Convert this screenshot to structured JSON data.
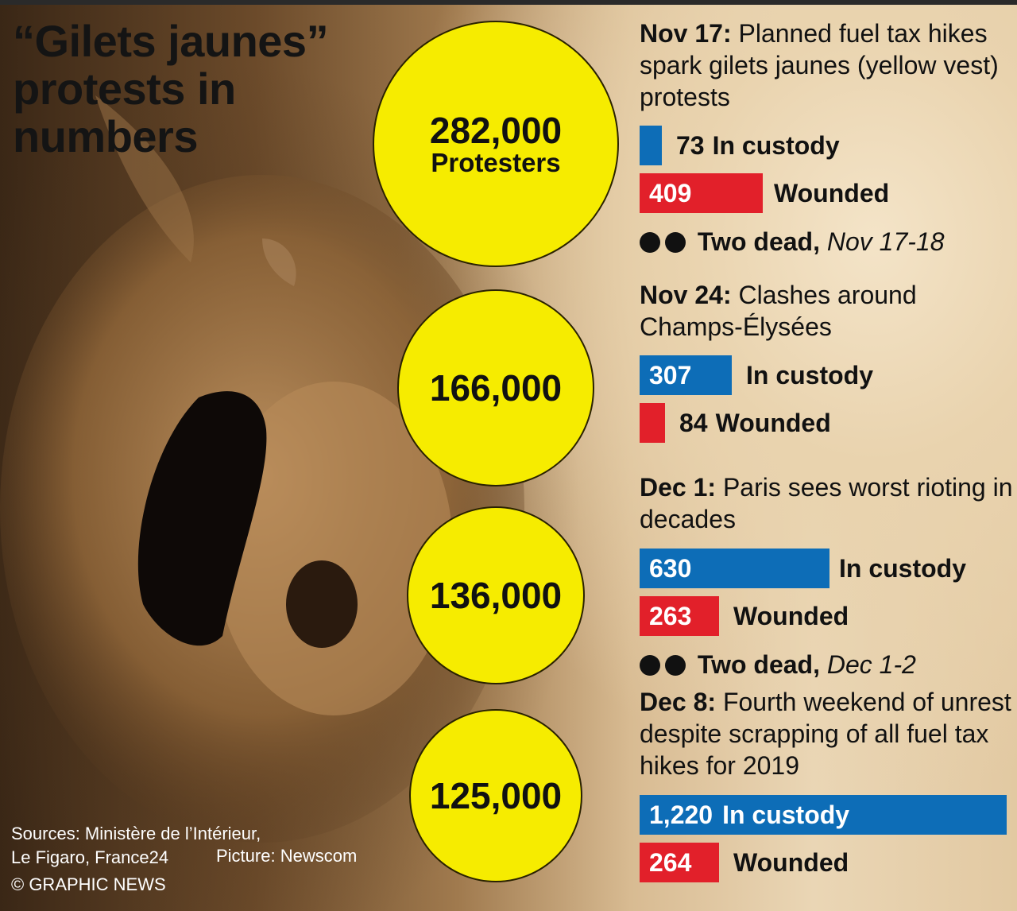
{
  "title": "“Gilets jaunes” protests in numbers",
  "chart_data": {
    "type": "bar",
    "title": "“Gilets jaunes” protests in numbers",
    "events": [
      {
        "date": "Nov 17:",
        "description": "Planned fuel tax hikes spark gilets jaunes (yellow vest) protests",
        "protesters": 282000,
        "protesters_label": "282,000",
        "protesters_sub": "Protesters",
        "custody": 73,
        "custody_label": "73",
        "custody_text": "In custody",
        "wounded": 409,
        "wounded_label": "409",
        "wounded_text": "Wounded",
        "dead_text": "Two dead,",
        "dead_dates": "Nov 17-18"
      },
      {
        "date": "Nov 24:",
        "description": "Clashes around Champs-Élysées",
        "protesters": 166000,
        "protesters_label": "166,000",
        "custody": 307,
        "custody_label": "307",
        "custody_text": "In custody",
        "wounded": 84,
        "wounded_label": "84",
        "wounded_text": "Wounded"
      },
      {
        "date": "Dec 1:",
        "description": "Paris sees worst rioting in decades",
        "protesters": 136000,
        "protesters_label": "136,000",
        "custody": 630,
        "custody_label": "630",
        "custody_text": "In custody",
        "wounded": 263,
        "wounded_label": "263",
        "wounded_text": "Wounded",
        "dead_text": "Two dead,",
        "dead_dates": "Dec 1-2"
      },
      {
        "date": "Dec 8:",
        "description": "Fourth weekend of unrest despite scrapping of all fuel tax hikes for 2019",
        "protesters": 125000,
        "protesters_label": "125,000",
        "custody": 1220,
        "custody_label": "1,220",
        "custody_text": "In custody",
        "wounded": 264,
        "wounded_label": "264",
        "wounded_text": "Wounded"
      }
    ]
  },
  "footer": {
    "sources_line1": "Sources: Ministère de l’Intérieur,",
    "sources_line2": "Le Figaro, France24",
    "picture": "Picture: Newscom",
    "copyright": "© GRAPHIC NEWS"
  },
  "colors": {
    "circle": "#f6ec00",
    "custody": "#0d6db7",
    "wounded": "#e2202a"
  }
}
